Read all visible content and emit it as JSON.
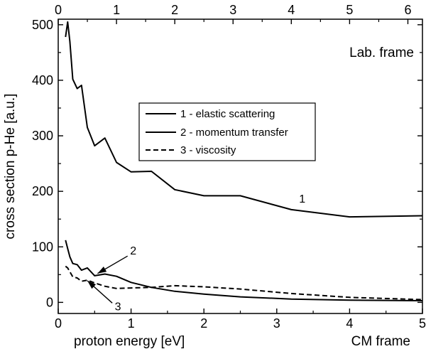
{
  "chart_data": {
    "type": "line",
    "xlabel": "proton energy  [eV]",
    "ylabel": "cross section p-He  [a.u.]",
    "x_top_label": "Lab. frame",
    "x_bottom_label": "CM frame",
    "xlim": [
      0,
      5
    ],
    "ylim": [
      -20,
      510
    ],
    "top_xlim": [
      0,
      6.25
    ],
    "x_ticks": [
      "0",
      "1",
      "2",
      "3",
      "4",
      "5"
    ],
    "top_ticks": [
      "0",
      "1",
      "2",
      "3",
      "4",
      "5",
      "6"
    ],
    "y_ticks": [
      "0",
      "100",
      "200",
      "300",
      "400",
      "500"
    ],
    "legend": [
      "1 - elastic scattering",
      "2 - momentum transfer",
      "3 - viscosity"
    ],
    "series": [
      {
        "name": "1 - elastic scattering",
        "dash": "solid",
        "x": [
          0.1,
          0.13,
          0.16,
          0.2,
          0.26,
          0.32,
          0.4,
          0.5,
          0.64,
          0.8,
          1.0,
          1.28,
          1.6,
          2.0,
          2.5,
          3.2,
          4.0,
          5.0
        ],
        "y": [
          478,
          505,
          470,
          402,
          385,
          391,
          315,
          282,
          296,
          252,
          235,
          236,
          203,
          192,
          192,
          167,
          154,
          156
        ]
      },
      {
        "name": "2 - momentum transfer",
        "dash": "solid",
        "x": [
          0.1,
          0.13,
          0.16,
          0.2,
          0.26,
          0.32,
          0.4,
          0.5,
          0.64,
          0.8,
          1.0,
          1.28,
          1.6,
          2.0,
          2.5,
          3.2,
          4.0,
          5.0
        ],
        "y": [
          112,
          97,
          82,
          70,
          68,
          58,
          62,
          48,
          51,
          47,
          36,
          27,
          20,
          15,
          10,
          6,
          4,
          3
        ]
      },
      {
        "name": "3 - viscosity",
        "dash": "dashed",
        "x": [
          0.1,
          0.13,
          0.16,
          0.2,
          0.26,
          0.32,
          0.4,
          0.5,
          0.64,
          0.8,
          1.0,
          1.28,
          1.6,
          2.0,
          2.5,
          3.2,
          4.0,
          5.0
        ],
        "y": [
          65,
          62,
          55,
          46,
          44,
          38,
          40,
          35,
          29,
          25,
          26,
          27,
          30,
          28,
          24,
          16,
          9,
          5
        ]
      }
    ],
    "annotations": [
      {
        "text": "1",
        "x": 3.35,
        "y": 180
      },
      {
        "text": "2",
        "x": 1.03,
        "y": 86,
        "arrow_to_x": 0.54,
        "arrow_to_y": 52
      },
      {
        "text": "3",
        "x": 0.82,
        "y": -14,
        "arrow_to_x": 0.4,
        "arrow_to_y": 39
      }
    ]
  }
}
